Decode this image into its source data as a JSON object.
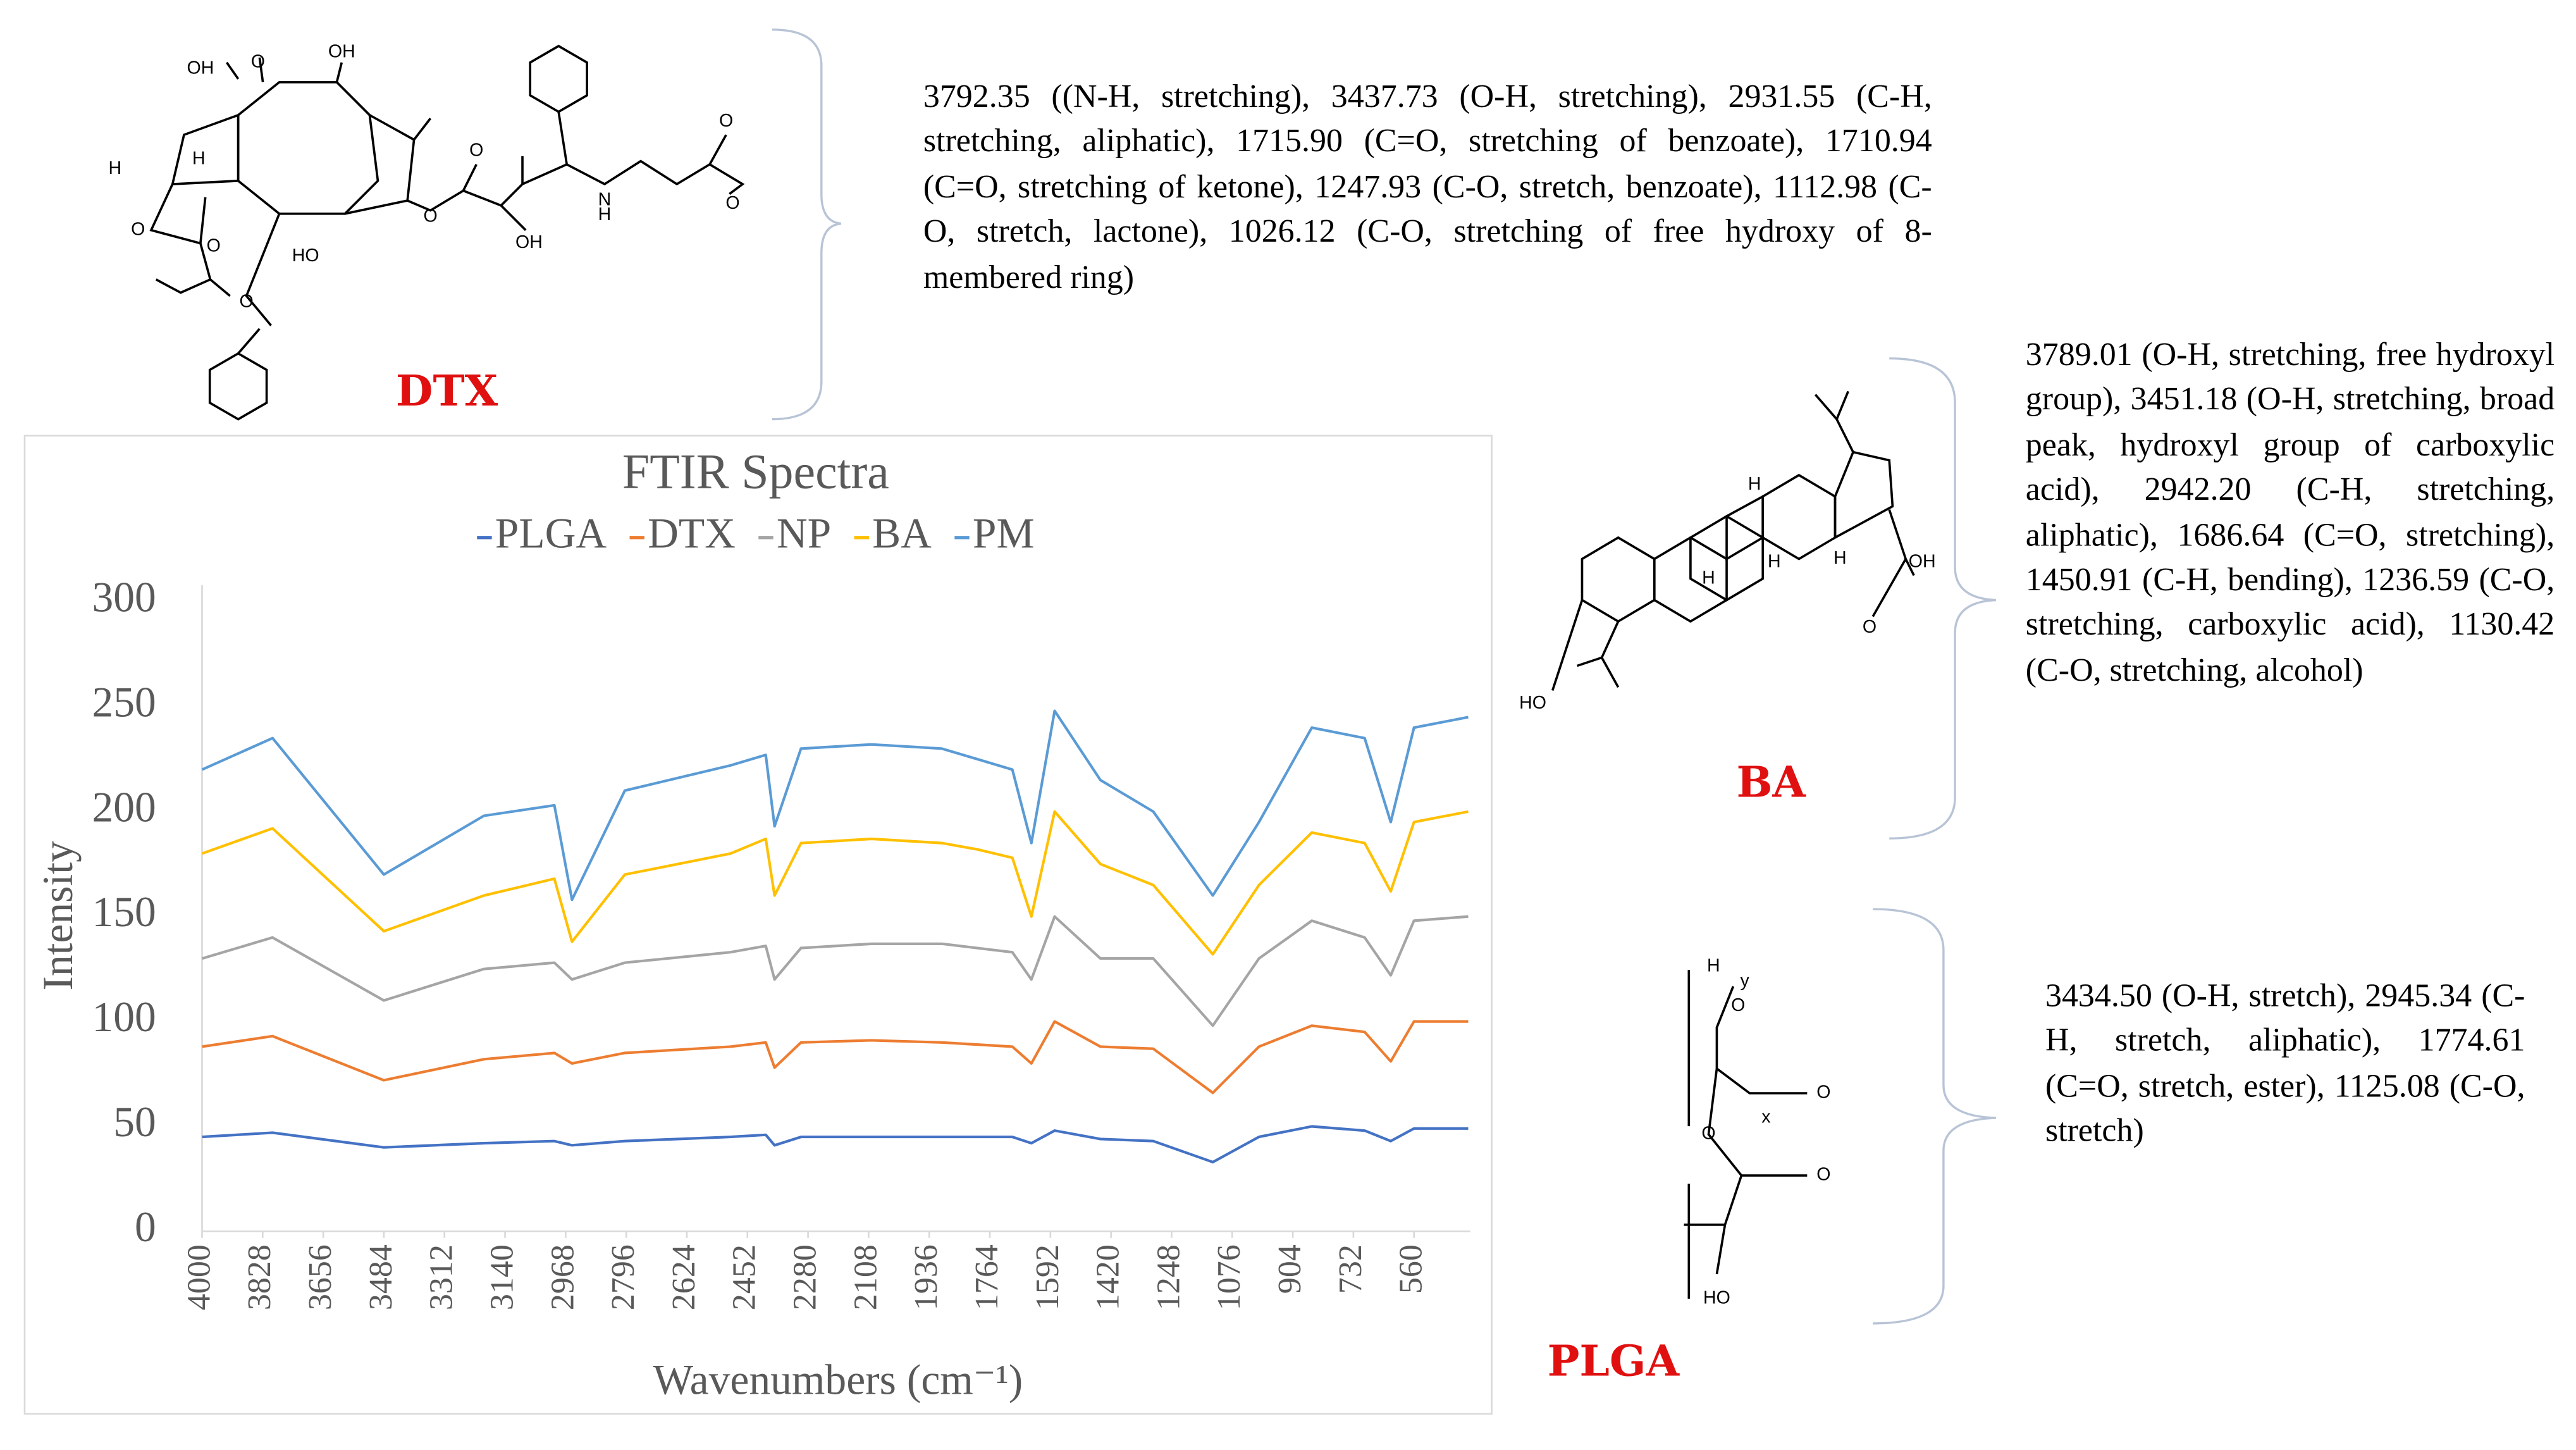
{
  "chart_data": {
    "type": "line",
    "title": "FTIR Spectra",
    "x_label": "Wavenumbers (cm⁻¹)",
    "y_label": "Intensity",
    "x": [
      4000,
      3800,
      3484,
      3200,
      3000,
      2950,
      2800,
      2500,
      2400,
      2375,
      2300,
      2100,
      1900,
      1800,
      1700,
      1646,
      1580,
      1450,
      1300,
      1131,
      1000,
      850,
      700,
      626,
      560,
      406
    ],
    "series": [
      {
        "name": "PLGA",
        "color": "#4472c4",
        "values": [
          45,
          47,
          40,
          42,
          43,
          41,
          43,
          45,
          46,
          41,
          45,
          45,
          45,
          45,
          45,
          42,
          48,
          44,
          43,
          33,
          45,
          50,
          48,
          43,
          49,
          49
        ]
      },
      {
        "name": "DTX",
        "color": "#ed7d31",
        "values": [
          88,
          93,
          72,
          82,
          85,
          80,
          85,
          88,
          90,
          78,
          90,
          91,
          90,
          89,
          88,
          80,
          100,
          88,
          87,
          66,
          88,
          98,
          95,
          81,
          100,
          100
        ]
      },
      {
        "name": "NP",
        "color": "#a5a5a5",
        "values": [
          130,
          140,
          110,
          125,
          128,
          120,
          128,
          133,
          136,
          120,
          135,
          137,
          137,
          135,
          133,
          120,
          150,
          130,
          130,
          98,
          130,
          148,
          140,
          122,
          148,
          150
        ]
      },
      {
        "name": "BA",
        "color": "#ffc000",
        "values": [
          180,
          192,
          143,
          160,
          168,
          138,
          170,
          180,
          187,
          160,
          185,
          187,
          185,
          182,
          178,
          150,
          200,
          175,
          165,
          132,
          165,
          190,
          185,
          162,
          195,
          200
        ]
      },
      {
        "name": "PM",
        "color": "#5b9bd5",
        "values": [
          220,
          235,
          170,
          198,
          203,
          158,
          210,
          222,
          227,
          193,
          230,
          232,
          230,
          225,
          220,
          185,
          248,
          215,
          200,
          160,
          195,
          240,
          235,
          195,
          240,
          245
        ]
      }
    ],
    "xlim": [
      4000,
      400
    ],
    "xticks": [
      4000,
      3828,
      3656,
      3484,
      3312,
      3140,
      2968,
      2796,
      2624,
      2452,
      2280,
      2108,
      1936,
      1764,
      1592,
      1420,
      1248,
      1076,
      904,
      732,
      560
    ],
    "ylim": [
      0,
      300
    ],
    "yticks": [
      0,
      50,
      100,
      150,
      200,
      250,
      300
    ],
    "grid": false,
    "legend": "top"
  },
  "structures": [
    {
      "label": "DTX",
      "atoms": [
        "OH",
        "O",
        "OH",
        "H",
        "H",
        "O",
        "O",
        "O",
        "HO",
        "O",
        "O",
        "OH",
        "N",
        "H",
        "O",
        "O"
      ],
      "description": "3792.35 ((N-H, stretching), 3437.73 (O-H, stretching), 2931.55 (C-H, stretching, aliphatic), 1715.90 (C=O, stretching of benzoate), 1710.94 (C=O, stretching of ketone), 1247.93 (C-O, stretch, benzoate), 1112.98 (C-O, stretch, lactone), 1026.12 (C-O, stretching of free hydroxy of 8-membered ring)"
    },
    {
      "label": "BA",
      "atoms": [
        "OH",
        "O",
        "HO",
        "H",
        "H",
        "H",
        "H"
      ],
      "description": "3789.01 (O-H, stretching, free hydroxyl group), 3451.18 (O-H, stretching, broad peak, hydroxyl group of carboxylic acid), 2942.20 (C-H, stretching, aliphatic), 1686.64 (C=O, stretching), 1450.91 (C-H, bending), 1236.59 (C-O, stretching, carboxylic acid), 1130.42 (C-O, stretching, alcohol)"
    },
    {
      "label": "PLGA",
      "atoms": [
        "H",
        "O",
        "y",
        "O",
        "x",
        "O",
        "O",
        "HO"
      ],
      "description": "3434.50 (O-H, stretch), 2945.34 (C-H, stretch, aliphatic), 1774.61 (C=O, stretch, ester), 1125.08 (C-O, stretch)"
    }
  ]
}
